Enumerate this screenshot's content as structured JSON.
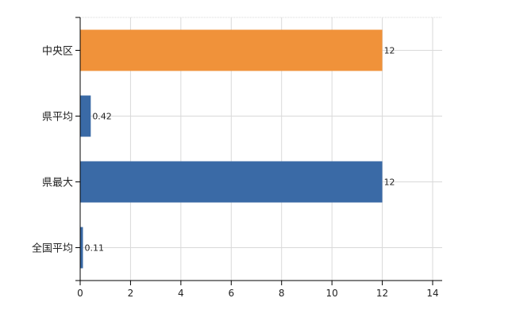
{
  "chart_data": {
    "type": "bar",
    "orientation": "horizontal",
    "categories": [
      "中央区",
      "県平均",
      "県最大",
      "全国平均"
    ],
    "values": [
      12,
      0.42,
      12,
      0.11
    ],
    "data_labels": [
      "12",
      "0.42",
      "12",
      "0.11"
    ],
    "bar_colors": [
      "#f0923a",
      "#3a6aa6",
      "#3a6aa6",
      "#3a6aa6"
    ],
    "xlim": [
      0,
      14
    ],
    "xticks": [
      0,
      2,
      4,
      6,
      8,
      10,
      12,
      14
    ],
    "grid": true,
    "legend": "none",
    "title": "",
    "xlabel": "",
    "ylabel": ""
  }
}
